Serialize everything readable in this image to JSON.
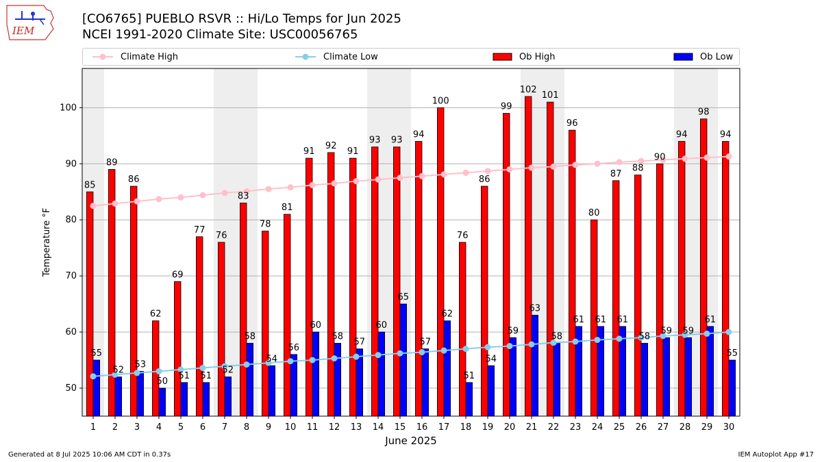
{
  "logo": {
    "text": "IEM"
  },
  "title_line1": "[CO6765] PUEBLO RSVR :: Hi/Lo Temps for Jun 2025",
  "title_line2": "NCEI 1991-2020 Climate Site: USC00056765",
  "legend": [
    {
      "label": "Climate High",
      "kind": "line",
      "color": "#ffc0cb"
    },
    {
      "label": "Climate Low",
      "kind": "line",
      "color": "#87ceeb"
    },
    {
      "label": "Ob High",
      "kind": "bar",
      "color": "#ff0000"
    },
    {
      "label": "Ob Low",
      "kind": "bar",
      "color": "#0000ff"
    }
  ],
  "footer_left": "Generated at 8 Jul 2025 10:06 AM CDT in 0.37s",
  "footer_right": "IEM Autoplot App #17",
  "chart_data": {
    "type": "bar",
    "xlabel": "June 2025",
    "ylabel": "Temperature °F",
    "ylim": [
      45,
      107
    ],
    "yticks": [
      50,
      60,
      70,
      80,
      90,
      100
    ],
    "grid": "horizontal",
    "legend_position": "top",
    "weekend_shading_color": "#eeeeee",
    "weekend_shaded_days": [
      1,
      7,
      8,
      14,
      15,
      21,
      22,
      28,
      29
    ],
    "categories": [
      "1",
      "2",
      "3",
      "4",
      "5",
      "6",
      "7",
      "8",
      "9",
      "10",
      "11",
      "12",
      "13",
      "14",
      "15",
      "16",
      "17",
      "18",
      "19",
      "20",
      "21",
      "22",
      "23",
      "24",
      "25",
      "26",
      "27",
      "28",
      "29",
      "30"
    ],
    "series": [
      {
        "name": "Ob High",
        "kind": "bar",
        "color": "#ff0000",
        "values": [
          85,
          89,
          86,
          62,
          69,
          77,
          76,
          83,
          78,
          81,
          91,
          92,
          91,
          93,
          93,
          94,
          100,
          76,
          86,
          99,
          102,
          101,
          96,
          80,
          87,
          88,
          90,
          94,
          98,
          94
        ]
      },
      {
        "name": "Ob Low",
        "kind": "bar",
        "color": "#0000ff",
        "values": [
          55,
          52,
          53,
          50,
          51,
          51,
          52,
          58,
          54,
          56,
          60,
          58,
          57,
          60,
          65,
          57,
          62,
          51,
          54,
          59,
          63,
          58,
          61,
          61,
          61,
          58,
          59,
          59,
          61,
          55
        ]
      },
      {
        "name": "Climate High",
        "kind": "line",
        "color": "#ffc0cb",
        "values": [
          82.5,
          82.9,
          83.3,
          83.7,
          84.0,
          84.4,
          84.8,
          85.1,
          85.5,
          85.8,
          86.2,
          86.5,
          86.9,
          87.2,
          87.5,
          87.8,
          88.1,
          88.4,
          88.7,
          89.0,
          89.3,
          89.5,
          89.8,
          90.0,
          90.3,
          90.5,
          90.7,
          90.9,
          91.1,
          91.3
        ]
      },
      {
        "name": "Climate Low",
        "kind": "line",
        "color": "#87ceeb",
        "values": [
          52.1,
          52.4,
          52.7,
          53.0,
          53.3,
          53.6,
          53.9,
          54.2,
          54.5,
          54.8,
          55.0,
          55.3,
          55.6,
          55.9,
          56.2,
          56.4,
          56.7,
          57.0,
          57.3,
          57.5,
          57.8,
          58.1,
          58.3,
          58.6,
          58.8,
          59.0,
          59.3,
          59.5,
          59.7,
          60.0
        ]
      }
    ]
  }
}
